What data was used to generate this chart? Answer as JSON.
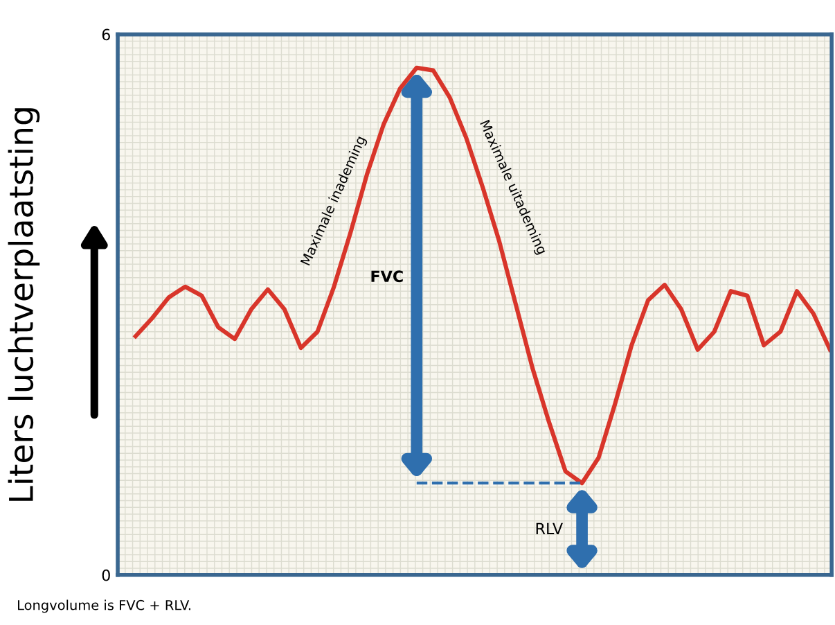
{
  "chart_data": {
    "type": "line",
    "ylabel": "Liters luchtverplaatsting",
    "categories": [
      null,
      null,
      null,
      null,
      null,
      null,
      null,
      null,
      null,
      null,
      null,
      null,
      null,
      null,
      null,
      null,
      null,
      null,
      null,
      null,
      null,
      null,
      null,
      null,
      null,
      null,
      null,
      null,
      null,
      null,
      null,
      null,
      null,
      null,
      null,
      null,
      null,
      null,
      null,
      null,
      null,
      null,
      null
    ],
    "series": [
      {
        "color": "#d8352a",
        "values": [
          2.65,
          2.85,
          3.08,
          3.2,
          3.1,
          2.75,
          2.62,
          2.95,
          3.17,
          2.95,
          2.52,
          2.7,
          3.2,
          3.8,
          4.45,
          5.0,
          5.4,
          5.63,
          5.6,
          5.3,
          4.85,
          4.3,
          3.7,
          3.0,
          2.3,
          1.7,
          1.15,
          1.02,
          1.3,
          1.9,
          2.55,
          3.05,
          3.22,
          2.95,
          2.5,
          2.7,
          3.15,
          3.1,
          2.55,
          2.7,
          3.15,
          2.9,
          2.5
        ]
      }
    ],
    "ylim": [
      0,
      6
    ],
    "yticks": [
      0,
      6
    ],
    "grid": true,
    "marker": "none",
    "line_style": "solid",
    "ref_lines": [
      {
        "axis": "y",
        "value": 1.02,
        "color": "#2f6fae",
        "line_style": "dashed"
      }
    ],
    "annotations": [
      "Maximale inademing",
      "Maximale uitademing",
      "FVC",
      "RLV",
      "Longvolume is FVC + RLV."
    ]
  }
}
